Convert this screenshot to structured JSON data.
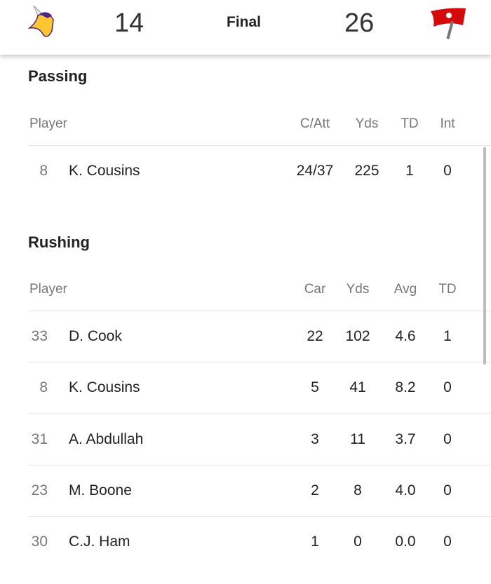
{
  "header": {
    "away_team": "Minnesota Vikings",
    "away_score": "14",
    "status": "Final",
    "home_score": "26",
    "home_team": "Tampa Bay Buccaneers",
    "away_color": "#FFC62F",
    "home_color": "#D50A0A"
  },
  "passing": {
    "title": "Passing",
    "columns": [
      "Player",
      "C/Att",
      "Yds",
      "TD",
      "Int"
    ],
    "rows": [
      {
        "num": "8",
        "name": "K. Cousins",
        "c_att": "24/37",
        "yds": "225",
        "td": "1",
        "int": "0"
      }
    ]
  },
  "rushing": {
    "title": "Rushing",
    "columns": [
      "Player",
      "Car",
      "Yds",
      "Avg",
      "TD"
    ],
    "rows": [
      {
        "num": "33",
        "name": "D. Cook",
        "car": "22",
        "yds": "102",
        "avg": "4.6",
        "td": "1"
      },
      {
        "num": "8",
        "name": "K. Cousins",
        "car": "5",
        "yds": "41",
        "avg": "8.2",
        "td": "0"
      },
      {
        "num": "31",
        "name": "A. Abdullah",
        "car": "3",
        "yds": "11",
        "avg": "3.7",
        "td": "0"
      },
      {
        "num": "23",
        "name": "M. Boone",
        "car": "2",
        "yds": "8",
        "avg": "4.0",
        "td": "0"
      },
      {
        "num": "30",
        "name": "C.J. Ham",
        "car": "1",
        "yds": "0",
        "avg": "0.0",
        "td": "0"
      }
    ]
  }
}
